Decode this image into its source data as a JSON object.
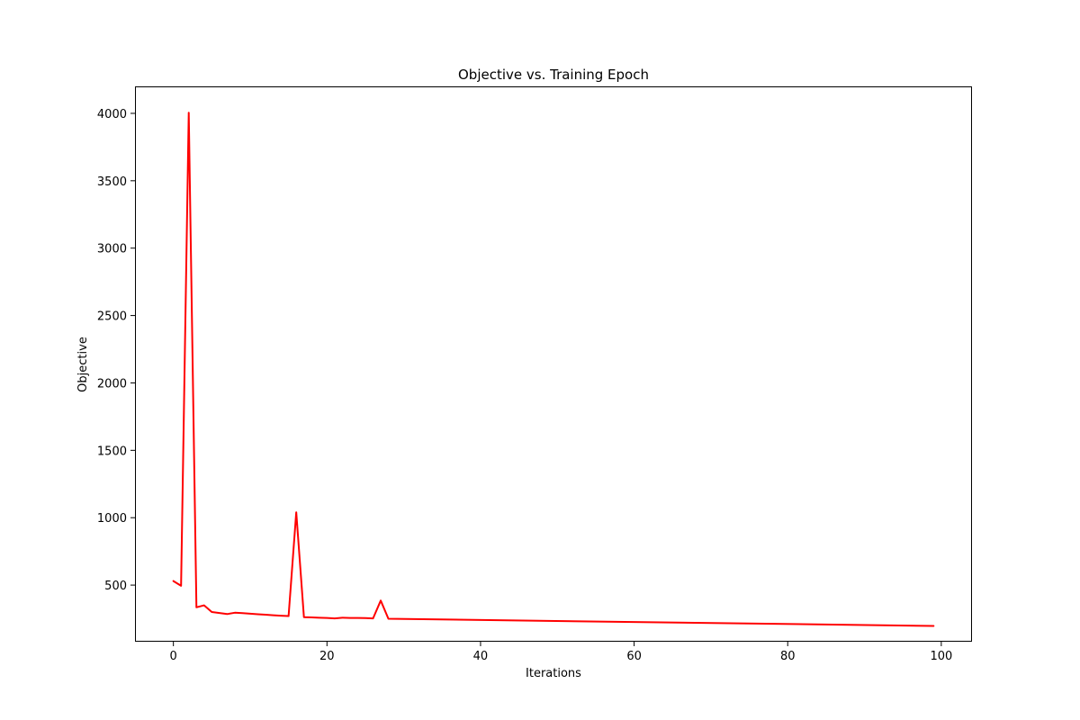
{
  "chart_data": {
    "type": "line",
    "title": "Objective vs. Training Epoch",
    "xlabel": "Iterations",
    "ylabel": "Objective",
    "xlim": [
      -5,
      104
    ],
    "ylim": [
      80,
      4200
    ],
    "xticks": [
      0,
      20,
      40,
      60,
      80,
      100
    ],
    "yticks": [
      500,
      1000,
      1500,
      2000,
      2500,
      3000,
      3500,
      4000
    ],
    "grid": false,
    "series": [
      {
        "color": "#ff0000",
        "x": [
          0,
          1,
          2,
          3,
          4,
          5,
          6,
          7,
          8,
          9,
          10,
          11,
          12,
          13,
          14,
          15,
          16,
          17,
          18,
          19,
          20,
          21,
          22,
          23,
          24,
          25,
          26,
          27,
          28,
          99
        ],
        "y": [
          530,
          495,
          4005,
          335,
          350,
          300,
          293,
          285,
          295,
          292,
          288,
          284,
          280,
          276,
          273,
          270,
          1040,
          262,
          260,
          258,
          256,
          253,
          258,
          256,
          256,
          255,
          253,
          385,
          250,
          197
        ]
      }
    ]
  }
}
